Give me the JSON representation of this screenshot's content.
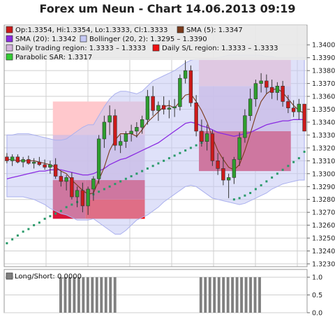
{
  "title": "Forex um Neun - Chart 14.06.2013 09:19",
  "colors": {
    "bull": "#2e9e2e",
    "bear": "#cc1a1a",
    "sma5": "#7a3a1a",
    "sma20": "#8a2be2",
    "bollinger_fill": "#c4c8f4",
    "bollinger_line": "#aab0ee",
    "trading_region": "#d4b4dc",
    "sl_region": "#d9163a",
    "sl_bright": "#ff0000",
    "sl_light": "#ffc8cc",
    "sar": "#2a9a6a",
    "grid": "#cfcfcf",
    "legend_bg": "#e8e8e8",
    "flag_bar": "#808080"
  },
  "legend": {
    "items": [
      {
        "label": "Op:1.3354, Hi:1.3354, Lo:1.3333, Cl:1.3333",
        "color": "#cc1a1a"
      },
      {
        "label": "SMA (5): 1.3347",
        "color": "#7a3a1a"
      },
      {
        "label": "SMA (20): 1.3342",
        "color": "#8a2be2"
      },
      {
        "label": "Bollinger (20, 2): 1.3295 – 1.3390",
        "color": "#c4c8f4"
      },
      {
        "label": "Daily trading region: 1.3333 – 1.3333",
        "color": "#d4b4dc"
      },
      {
        "label": "Daily S/L region: 1.3333 – 1.3333",
        "color": "#ee1111"
      },
      {
        "label": "Parabolic SAR: 1.3317",
        "color": "#33cc33"
      }
    ]
  },
  "sub_legend": "Long/Short: 0.0000",
  "chart_data": [
    {
      "type": "candlestick",
      "y_ticks": [
        "1.3230",
        "1.3240",
        "1.3250",
        "1.3260",
        "1.3270",
        "1.3280",
        "1.3290",
        "1.3300",
        "1.3310",
        "1.3320",
        "1.3330",
        "1.3340",
        "1.3350",
        "1.3360",
        "1.3370",
        "1.3380",
        "1.3390",
        "1.3400"
      ],
      "ylim": [
        1.323,
        1.3405
      ],
      "candles": [
        [
          1.3313,
          1.3316,
          1.3308,
          1.331
        ],
        [
          1.331,
          1.3315,
          1.3306,
          1.3313
        ],
        [
          1.3313,
          1.3315,
          1.3308,
          1.3309
        ],
        [
          1.3309,
          1.3313,
          1.3305,
          1.3311
        ],
        [
          1.3311,
          1.3314,
          1.3307,
          1.3308
        ],
        [
          1.3308,
          1.3312,
          1.3304,
          1.3309
        ],
        [
          1.3309,
          1.3313,
          1.3306,
          1.3307
        ],
        [
          1.3307,
          1.3311,
          1.3303,
          1.3305
        ],
        [
          1.3305,
          1.331,
          1.33,
          1.3307
        ],
        [
          1.3307,
          1.3312,
          1.3296,
          1.3298
        ],
        [
          1.3298,
          1.3302,
          1.329,
          1.3294
        ],
        [
          1.3294,
          1.3299,
          1.3287,
          1.3297
        ],
        [
          1.3297,
          1.3301,
          1.328,
          1.3282
        ],
        [
          1.3282,
          1.329,
          1.3274,
          1.3287
        ],
        [
          1.3287,
          1.3293,
          1.327,
          1.3275
        ],
        [
          1.3275,
          1.329,
          1.3268,
          1.3288
        ],
        [
          1.3288,
          1.3298,
          1.3279,
          1.3296
        ],
        [
          1.3296,
          1.333,
          1.3292,
          1.3327
        ],
        [
          1.3327,
          1.3345,
          1.332,
          1.334
        ],
        [
          1.334,
          1.3353,
          1.333,
          1.3345
        ],
        [
          1.3345,
          1.335,
          1.3318,
          1.3322
        ],
        [
          1.3322,
          1.333,
          1.3316,
          1.3325
        ],
        [
          1.3325,
          1.3333,
          1.332,
          1.3331
        ],
        [
          1.3331,
          1.3338,
          1.3325,
          1.3333
        ],
        [
          1.3333,
          1.334,
          1.3328,
          1.3336
        ],
        [
          1.3336,
          1.3345,
          1.3331,
          1.3342
        ],
        [
          1.3342,
          1.3365,
          1.3338,
          1.336
        ],
        [
          1.336,
          1.3368,
          1.3345,
          1.3349
        ],
        [
          1.3349,
          1.3356,
          1.3341,
          1.3353
        ],
        [
          1.3353,
          1.336,
          1.3346,
          1.335
        ],
        [
          1.335,
          1.3357,
          1.3343,
          1.3351
        ],
        [
          1.3351,
          1.3358,
          1.3344,
          1.3352
        ],
        [
          1.3352,
          1.3377,
          1.3349,
          1.3374
        ],
        [
          1.3374,
          1.3388,
          1.337,
          1.338
        ],
        [
          1.338,
          1.3384,
          1.3352,
          1.3355
        ],
        [
          1.3355,
          1.3361,
          1.3329,
          1.3333
        ],
        [
          1.3333,
          1.3342,
          1.3321,
          1.3325
        ],
        [
          1.3325,
          1.3338,
          1.3318,
          1.3331
        ],
        [
          1.3331,
          1.3334,
          1.3306,
          1.331
        ],
        [
          1.331,
          1.3316,
          1.3299,
          1.3304
        ],
        [
          1.3304,
          1.3313,
          1.3291,
          1.3295
        ],
        [
          1.3295,
          1.33,
          1.3281,
          1.3297
        ],
        [
          1.3297,
          1.3313,
          1.3292,
          1.3311
        ],
        [
          1.3311,
          1.3332,
          1.3306,
          1.3328
        ],
        [
          1.3328,
          1.335,
          1.3324,
          1.3345
        ],
        [
          1.3345,
          1.3366,
          1.3341,
          1.3358
        ],
        [
          1.3358,
          1.3373,
          1.3352,
          1.337
        ],
        [
          1.337,
          1.3378,
          1.3363,
          1.3372
        ],
        [
          1.3372,
          1.3377,
          1.3362,
          1.3367
        ],
        [
          1.3367,
          1.3373,
          1.3358,
          1.3363
        ],
        [
          1.3363,
          1.3371,
          1.3357,
          1.3368
        ],
        [
          1.3368,
          1.3372,
          1.3352,
          1.3356
        ],
        [
          1.3356,
          1.3361,
          1.3347,
          1.3351
        ],
        [
          1.3351,
          1.3357,
          1.3344,
          1.3348
        ],
        [
          1.3348,
          1.3358,
          1.3342,
          1.3354
        ],
        [
          1.3354,
          1.3354,
          1.3333,
          1.3333
        ]
      ],
      "sma5": [
        1.3311,
        1.3311,
        1.331,
        1.331,
        1.331,
        1.331,
        1.3309,
        1.3308,
        1.3307,
        1.3305,
        1.3302,
        1.33,
        1.3295,
        1.3291,
        1.3287,
        1.3284,
        1.3285,
        1.3295,
        1.3305,
        1.3318,
        1.3326,
        1.3331,
        1.3331,
        1.3331,
        1.3329,
        1.3334,
        1.334,
        1.3344,
        1.3348,
        1.3352,
        1.3353,
        1.3351,
        1.3356,
        1.3361,
        1.3362,
        1.3356,
        1.3349,
        1.334,
        1.3328,
        1.3318,
        1.3311,
        1.3305,
        1.3303,
        1.3307,
        1.3318,
        1.3331,
        1.3345,
        1.3356,
        1.3362,
        1.3365,
        1.3366,
        1.3363,
        1.3358,
        1.3353,
        1.3349,
        1.3347
      ],
      "sma20": [
        1.3296,
        1.3297,
        1.3298,
        1.3299,
        1.33,
        1.3301,
        1.3302,
        1.3302,
        1.3303,
        1.3303,
        1.3303,
        1.3302,
        1.3301,
        1.33,
        1.3299,
        1.3299,
        1.33,
        1.3302,
        1.3304,
        1.3307,
        1.3309,
        1.3311,
        1.3312,
        1.3314,
        1.3316,
        1.3318,
        1.332,
        1.3322,
        1.3324,
        1.3327,
        1.333,
        1.3333,
        1.3336,
        1.3339,
        1.334,
        1.3339,
        1.3337,
        1.3336,
        1.3334,
        1.3332,
        1.3331,
        1.333,
        1.3329,
        1.333,
        1.3331,
        1.3332,
        1.3334,
        1.3336,
        1.3338,
        1.3339,
        1.334,
        1.3341,
        1.3341,
        1.3342,
        1.3342,
        1.3342
      ],
      "boll_upper": [
        1.333,
        1.333,
        1.3331,
        1.3331,
        1.3331,
        1.333,
        1.3329,
        1.3328,
        1.3327,
        1.3326,
        1.3326,
        1.3327,
        1.333,
        1.3333,
        1.3336,
        1.3338,
        1.3338,
        1.3345,
        1.3352,
        1.3358,
        1.3362,
        1.3364,
        1.3364,
        1.3363,
        1.3362,
        1.3364,
        1.3368,
        1.3372,
        1.3374,
        1.3376,
        1.3378,
        1.338,
        1.3383,
        1.3386,
        1.3388,
        1.3389,
        1.3389,
        1.3389,
        1.3389,
        1.339,
        1.3391,
        1.3392,
        1.3392,
        1.3392,
        1.3392,
        1.3392,
        1.3392,
        1.3392,
        1.3391,
        1.3391,
        1.339,
        1.339,
        1.339,
        1.339,
        1.339,
        1.339
      ],
      "boll_lower": [
        1.3282,
        1.3282,
        1.3282,
        1.3282,
        1.3281,
        1.328,
        1.3278,
        1.3276,
        1.3273,
        1.3271,
        1.3269,
        1.3268,
        1.3266,
        1.3264,
        1.3264,
        1.3264,
        1.3265,
        1.3262,
        1.3259,
        1.3256,
        1.3253,
        1.3253,
        1.3256,
        1.326,
        1.3264,
        1.3266,
        1.3268,
        1.3271,
        1.3274,
        1.3278,
        1.3281,
        1.3284,
        1.3287,
        1.329,
        1.3291,
        1.329,
        1.3287,
        1.3284,
        1.3281,
        1.328,
        1.3279,
        1.3278,
        1.3277,
        1.3276,
        1.3277,
        1.3279,
        1.3281,
        1.3283,
        1.3285,
        1.3288,
        1.329,
        1.3292,
        1.3293,
        1.3294,
        1.3295,
        1.3295
      ],
      "sar": [
        1.3246,
        1.3249,
        1.3252,
        1.3255,
        1.3257,
        1.326,
        1.3262,
        1.3265,
        1.3267,
        1.3269,
        1.3271,
        1.3274,
        1.3276,
        1.3278,
        1.328,
        1.3282,
        1.3284,
        1.3286,
        1.3288,
        1.329,
        1.3292,
        1.3294,
        1.3296,
        1.3298,
        1.33,
        1.3302,
        1.3304,
        1.3306,
        1.3308,
        1.331,
        1.3312,
        1.3314,
        1.3316,
        1.3318,
        1.332,
        1.3322,
        1.3324,
        1.3326,
        null,
        null,
        null,
        null,
        1.328,
        1.3281,
        1.3283,
        1.3285,
        1.3288,
        1.3291,
        1.3294,
        1.3297,
        1.33,
        1.3303,
        1.3306,
        1.3309,
        1.3312,
        1.3317
      ],
      "regions": [
        {
          "kind": "bright",
          "from": 15,
          "to": 25,
          "low": 1.3265,
          "high": 1.328
        },
        {
          "kind": "sl",
          "from": 9,
          "to": 14,
          "low": 1.3265,
          "high": 1.3295
        },
        {
          "kind": "trading",
          "from": 9,
          "to": 25,
          "low": 1.3295,
          "high": 1.333
        },
        {
          "kind": "sl",
          "from": 15,
          "to": 25,
          "low": 1.328,
          "high": 1.3295
        },
        {
          "kind": "light",
          "from": 9,
          "to": 25,
          "low": 1.333,
          "high": 1.3356
        },
        {
          "kind": "sl",
          "from": 36,
          "to": 52,
          "low": 1.3302,
          "high": 1.3333
        },
        {
          "kind": "trading",
          "from": 36,
          "to": 52,
          "low": 1.3333,
          "high": 1.3368
        },
        {
          "kind": "light",
          "from": 36,
          "to": 52,
          "low": 1.3368,
          "high": 1.339
        }
      ]
    },
    {
      "type": "bar",
      "y_ticks": [
        "0.0",
        "0.5",
        "1.0"
      ],
      "ylim": [
        0,
        1.1
      ],
      "values": [
        0,
        0,
        0,
        0,
        0,
        0,
        0,
        0,
        0,
        0,
        0,
        0,
        1,
        1,
        1,
        1,
        1,
        1,
        1,
        1,
        1,
        1,
        1,
        1,
        1,
        0,
        0,
        0,
        0,
        0,
        0,
        0,
        0,
        0,
        0,
        0,
        0,
        0,
        0,
        0,
        0,
        0,
        0,
        1,
        1,
        1,
        1,
        1,
        1,
        1,
        1,
        1,
        1,
        1,
        1,
        1,
        1,
        0,
        0,
        0,
        0,
        0,
        0,
        0,
        0,
        0,
        0
      ]
    }
  ]
}
